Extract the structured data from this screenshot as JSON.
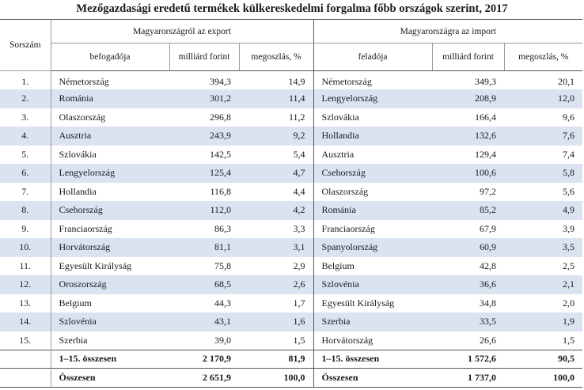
{
  "title": "Mezőgazdasági eredetű termékek külkereskedelmi forgalma főbb országok szerint, 2017",
  "headers": {
    "sorszam": "Sorszám",
    "export_group": "Magyarországról az export",
    "import_group": "Magyarországra az import",
    "befogadoja": "befogadója",
    "feladoja": "feladója",
    "milliard": "milliárd forint",
    "megoszlas": "megoszlás, %"
  },
  "rows": [
    {
      "n": "1.",
      "ex_country": "Németország",
      "ex_value": "394,3",
      "ex_share": "14,9",
      "im_country": "Németország",
      "im_value": "349,3",
      "im_share": "20,1"
    },
    {
      "n": "2.",
      "ex_country": "Románia",
      "ex_value": "301,2",
      "ex_share": "11,4",
      "im_country": "Lengyelország",
      "im_value": "208,9",
      "im_share": "12,0"
    },
    {
      "n": "3.",
      "ex_country": "Olaszország",
      "ex_value": "296,8",
      "ex_share": "11,2",
      "im_country": "Szlovákia",
      "im_value": "166,4",
      "im_share": "9,6"
    },
    {
      "n": "4.",
      "ex_country": "Ausztria",
      "ex_value": "243,9",
      "ex_share": "9,2",
      "im_country": "Hollandia",
      "im_value": "132,6",
      "im_share": "7,6"
    },
    {
      "n": "5.",
      "ex_country": "Szlovákia",
      "ex_value": "142,5",
      "ex_share": "5,4",
      "im_country": "Ausztria",
      "im_value": "129,4",
      "im_share": "7,4"
    },
    {
      "n": "6.",
      "ex_country": "Lengyelország",
      "ex_value": "125,4",
      "ex_share": "4,7",
      "im_country": "Csehország",
      "im_value": "100,6",
      "im_share": "5,8"
    },
    {
      "n": "7.",
      "ex_country": "Hollandia",
      "ex_value": "116,8",
      "ex_share": "4,4",
      "im_country": "Olaszország",
      "im_value": "97,2",
      "im_share": "5,6"
    },
    {
      "n": "8.",
      "ex_country": "Csehország",
      "ex_value": "112,0",
      "ex_share": "4,2",
      "im_country": "Románia",
      "im_value": "85,2",
      "im_share": "4,9"
    },
    {
      "n": "9.",
      "ex_country": "Franciaország",
      "ex_value": "86,3",
      "ex_share": "3,3",
      "im_country": "Franciaország",
      "im_value": "67,9",
      "im_share": "3,9"
    },
    {
      "n": "10.",
      "ex_country": "Horvátország",
      "ex_value": "81,1",
      "ex_share": "3,1",
      "im_country": "Spanyolország",
      "im_value": "60,9",
      "im_share": "3,5"
    },
    {
      "n": "11.",
      "ex_country": "Egyesült Királyság",
      "ex_value": "75,8",
      "ex_share": "2,9",
      "im_country": "Belgium",
      "im_value": "42,8",
      "im_share": "2,5"
    },
    {
      "n": "12.",
      "ex_country": "Oroszország",
      "ex_value": "68,5",
      "ex_share": "2,6",
      "im_country": "Szlovénia",
      "im_value": "36,6",
      "im_share": "2,1"
    },
    {
      "n": "13.",
      "ex_country": "Belgium",
      "ex_value": "44,3",
      "ex_share": "1,7",
      "im_country": "Egyesült Királyság",
      "im_value": "34,8",
      "im_share": "2,0"
    },
    {
      "n": "14.",
      "ex_country": "Szlovénia",
      "ex_value": "43,1",
      "ex_share": "1,6",
      "im_country": "Szerbia",
      "im_value": "33,5",
      "im_share": "1,9"
    },
    {
      "n": "15.",
      "ex_country": "Szerbia",
      "ex_value": "39,0",
      "ex_share": "1,5",
      "im_country": "Horvátország",
      "im_value": "26,6",
      "im_share": "1,5"
    }
  ],
  "subtotal": {
    "label": "1–15. összesen",
    "ex_value": "2 170,9",
    "ex_share": "81,9",
    "im_value": "1 572,6",
    "im_share": "90,5"
  },
  "total": {
    "label": "Összesen",
    "ex_value": "2 651,9",
    "ex_share": "100,0",
    "im_value": "1 737,0",
    "im_share": "100,0"
  }
}
